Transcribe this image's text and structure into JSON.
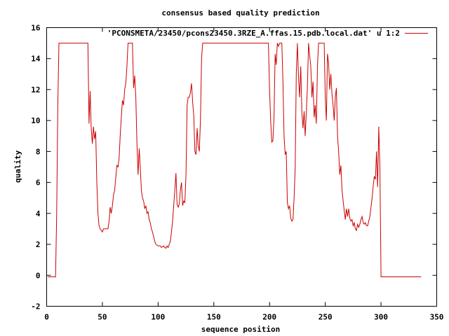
{
  "chart_data": {
    "type": "line",
    "title": "consensus based quality prediction",
    "xlabel": "sequence position",
    "ylabel": "quality",
    "xlim": [
      0,
      350
    ],
    "ylim": [
      -2,
      16
    ],
    "x_ticks": [
      0,
      50,
      100,
      150,
      200,
      250,
      300,
      350
    ],
    "y_ticks": [
      -2,
      0,
      2,
      4,
      6,
      8,
      10,
      12,
      14,
      16
    ],
    "grid": false,
    "legend_position": "top-right",
    "series": [
      {
        "name": "'PCONSMETA/23450/pcons23450.3RZE_A.ffas.15.pdb.local.dat' u 1:2",
        "color": "#cc0000",
        "points": [
          [
            1,
            -0.1
          ],
          [
            8,
            -0.1
          ],
          [
            9,
            4.0
          ],
          [
            10,
            11.0
          ],
          [
            11,
            15.0
          ],
          [
            37,
            15.0
          ],
          [
            38,
            9.8
          ],
          [
            39,
            11.9
          ],
          [
            40,
            9.5
          ],
          [
            41,
            8.5
          ],
          [
            42,
            9.6
          ],
          [
            43,
            8.8
          ],
          [
            44,
            9.3
          ],
          [
            45,
            6.0
          ],
          [
            46,
            4.0
          ],
          [
            47,
            3.2
          ],
          [
            48,
            3.0
          ],
          [
            50,
            2.8
          ],
          [
            51,
            3.0
          ],
          [
            55,
            3.0
          ],
          [
            56,
            3.5
          ],
          [
            57,
            4.4
          ],
          [
            58,
            4.0
          ],
          [
            59,
            4.5
          ],
          [
            60,
            5.2
          ],
          [
            61,
            5.5
          ],
          [
            62,
            6.3
          ],
          [
            63,
            7.1
          ],
          [
            64,
            7.0
          ],
          [
            65,
            7.6
          ],
          [
            66,
            9.0
          ],
          [
            67,
            10.2
          ],
          [
            68,
            11.3
          ],
          [
            69,
            11.0
          ],
          [
            70,
            12.0
          ],
          [
            71,
            12.4
          ],
          [
            72,
            13.5
          ],
          [
            73,
            15.0
          ],
          [
            77,
            15.0
          ],
          [
            78,
            12.1
          ],
          [
            79,
            12.9
          ],
          [
            80,
            11.5
          ],
          [
            81,
            8.5
          ],
          [
            82,
            6.5
          ],
          [
            83,
            8.2
          ],
          [
            84,
            7.0
          ],
          [
            85,
            5.5
          ],
          [
            86,
            5.0
          ],
          [
            87,
            4.8
          ],
          [
            88,
            4.3
          ],
          [
            89,
            4.5
          ],
          [
            90,
            4.0
          ],
          [
            91,
            4.1
          ],
          [
            92,
            3.6
          ],
          [
            93,
            3.4
          ],
          [
            94,
            3.0
          ],
          [
            95,
            2.8
          ],
          [
            96,
            2.5
          ],
          [
            97,
            2.2
          ],
          [
            98,
            2.0
          ],
          [
            100,
            1.9
          ],
          [
            102,
            1.9
          ],
          [
            103,
            1.8
          ],
          [
            105,
            1.9
          ],
          [
            106,
            1.8
          ],
          [
            107,
            1.75
          ],
          [
            108,
            1.9
          ],
          [
            109,
            1.8
          ],
          [
            110,
            2.0
          ],
          [
            111,
            2.2
          ],
          [
            112,
            2.8
          ],
          [
            113,
            3.5
          ],
          [
            114,
            4.5
          ],
          [
            115,
            5.5
          ],
          [
            116,
            6.6
          ],
          [
            117,
            4.6
          ],
          [
            118,
            4.4
          ],
          [
            119,
            4.6
          ],
          [
            120,
            5.5
          ],
          [
            121,
            6.0
          ],
          [
            122,
            4.5
          ],
          [
            123,
            4.8
          ],
          [
            124,
            4.7
          ],
          [
            125,
            6.5
          ],
          [
            126,
            11.0
          ],
          [
            127,
            11.5
          ],
          [
            128,
            11.5
          ],
          [
            129,
            11.8
          ],
          [
            130,
            12.4
          ],
          [
            131,
            11.2
          ],
          [
            132,
            10.3
          ],
          [
            133,
            8.0
          ],
          [
            134,
            7.8
          ],
          [
            135,
            9.5
          ],
          [
            136,
            8.4
          ],
          [
            137,
            8.0
          ],
          [
            138,
            10.0
          ],
          [
            139,
            14.0
          ],
          [
            140,
            15.0
          ],
          [
            199,
            15.0
          ],
          [
            200,
            12.0
          ],
          [
            201,
            10.0
          ],
          [
            202,
            8.6
          ],
          [
            203,
            8.7
          ],
          [
            204,
            10.3
          ],
          [
            205,
            14.3
          ],
          [
            206,
            13.6
          ],
          [
            207,
            15.0
          ],
          [
            208,
            14.8
          ],
          [
            209,
            15.0
          ],
          [
            211,
            15.0
          ],
          [
            212,
            12.5
          ],
          [
            213,
            9.0
          ],
          [
            214,
            7.8
          ],
          [
            215,
            8.0
          ],
          [
            216,
            4.7
          ],
          [
            217,
            4.3
          ],
          [
            218,
            4.5
          ],
          [
            219,
            3.7
          ],
          [
            220,
            3.5
          ],
          [
            221,
            3.6
          ],
          [
            222,
            5.0
          ],
          [
            223,
            7.0
          ],
          [
            224,
            13.0
          ],
          [
            225,
            15.0
          ],
          [
            226,
            12.8
          ],
          [
            227,
            11.5
          ],
          [
            228,
            13.5
          ],
          [
            229,
            10.5
          ],
          [
            230,
            9.5
          ],
          [
            231,
            10.6
          ],
          [
            232,
            9.0
          ],
          [
            233,
            10.5
          ],
          [
            234,
            12.2
          ],
          [
            235,
            15.0
          ],
          [
            236,
            14.2
          ],
          [
            237,
            13.5
          ],
          [
            238,
            11.5
          ],
          [
            239,
            12.5
          ],
          [
            240,
            10.2
          ],
          [
            241,
            11.0
          ],
          [
            242,
            9.8
          ],
          [
            243,
            13.5
          ],
          [
            244,
            15.0
          ],
          [
            249,
            15.0
          ],
          [
            250,
            11.5
          ],
          [
            251,
            10.0
          ],
          [
            252,
            14.3
          ],
          [
            253,
            13.7
          ],
          [
            254,
            12.0
          ],
          [
            255,
            13.0
          ],
          [
            256,
            11.7
          ],
          [
            257,
            11.0
          ],
          [
            258,
            10.0
          ],
          [
            259,
            11.5
          ],
          [
            260,
            12.1
          ],
          [
            261,
            9.0
          ],
          [
            262,
            8.0
          ],
          [
            263,
            6.5
          ],
          [
            264,
            7.1
          ],
          [
            265,
            5.5
          ],
          [
            266,
            4.8
          ],
          [
            267,
            4.2
          ],
          [
            268,
            3.6
          ],
          [
            269,
            4.3
          ],
          [
            270,
            3.8
          ],
          [
            271,
            4.3
          ],
          [
            272,
            3.7
          ],
          [
            273,
            3.5
          ],
          [
            274,
            3.6
          ],
          [
            275,
            3.2
          ],
          [
            276,
            3.4
          ],
          [
            277,
            3.0
          ],
          [
            278,
            2.9
          ],
          [
            279,
            3.3
          ],
          [
            280,
            3.1
          ],
          [
            281,
            3.3
          ],
          [
            282,
            3.6
          ],
          [
            283,
            3.8
          ],
          [
            284,
            3.4
          ],
          [
            285,
            3.3
          ],
          [
            286,
            3.4
          ],
          [
            287,
            3.2
          ],
          [
            288,
            3.2
          ],
          [
            289,
            3.5
          ],
          [
            290,
            3.8
          ],
          [
            291,
            4.4
          ],
          [
            292,
            5.0
          ],
          [
            293,
            5.8
          ],
          [
            294,
            6.4
          ],
          [
            295,
            6.2
          ],
          [
            296,
            8.0
          ],
          [
            297,
            5.7
          ],
          [
            298,
            9.6
          ],
          [
            299,
            7.0
          ],
          [
            300,
            -0.1
          ],
          [
            336,
            -0.1
          ]
        ]
      }
    ]
  }
}
